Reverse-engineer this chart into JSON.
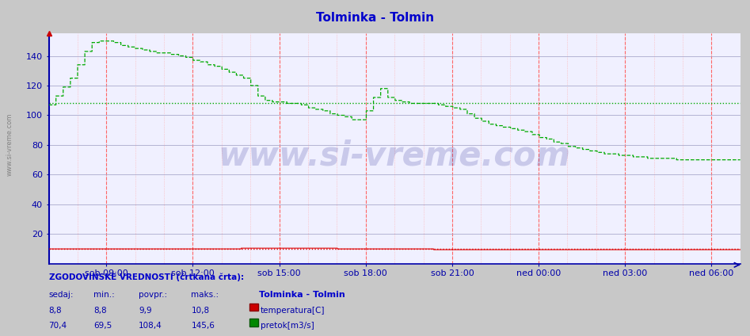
{
  "title": "Tolminka - Tolmin",
  "title_color": "#0000cc",
  "bg_color": "#c8c8c8",
  "plot_bg_color": "#f0f0ff",
  "grid_v_minor_color": "#ffaaaa",
  "grid_v_major_color": "#ff6666",
  "grid_h_color": "#aaaacc",
  "ylim": [
    0,
    155
  ],
  "yticks": [
    20,
    40,
    60,
    80,
    100,
    120,
    140
  ],
  "xtick_labels": [
    "sob 09:00",
    "sob 12:00",
    "sob 15:00",
    "sob 18:00",
    "sob 21:00",
    "ned 00:00",
    "ned 03:00",
    "ned 06:00"
  ],
  "xtick_positions": [
    120,
    300,
    480,
    660,
    840,
    1020,
    1200,
    1380
  ],
  "temp_avg_line": 9.9,
  "flow_avg_line": 108.4,
  "temp_color": "#dd0000",
  "flow_color": "#00aa00",
  "watermark": "www.si-vreme.com",
  "temp_sedaj": 8.8,
  "temp_min": 8.8,
  "temp_povpr": 9.9,
  "temp_maks": 10.8,
  "flow_sedaj": 70.4,
  "flow_min": 69.5,
  "flow_povpr": 108.4,
  "flow_maks": 145.6,
  "tick_label_color": "#0000aa",
  "spine_color": "#0000aa",
  "side_label": "www.si-vreme.com",
  "legend_header": "ZGODOVINSKE VREDNOSTI (črtkana črta):",
  "legend_col_headers": [
    "sedaj:",
    "min.:",
    "povpr.:",
    "maks.:"
  ],
  "legend_title": "Tolminka - Tolmin"
}
